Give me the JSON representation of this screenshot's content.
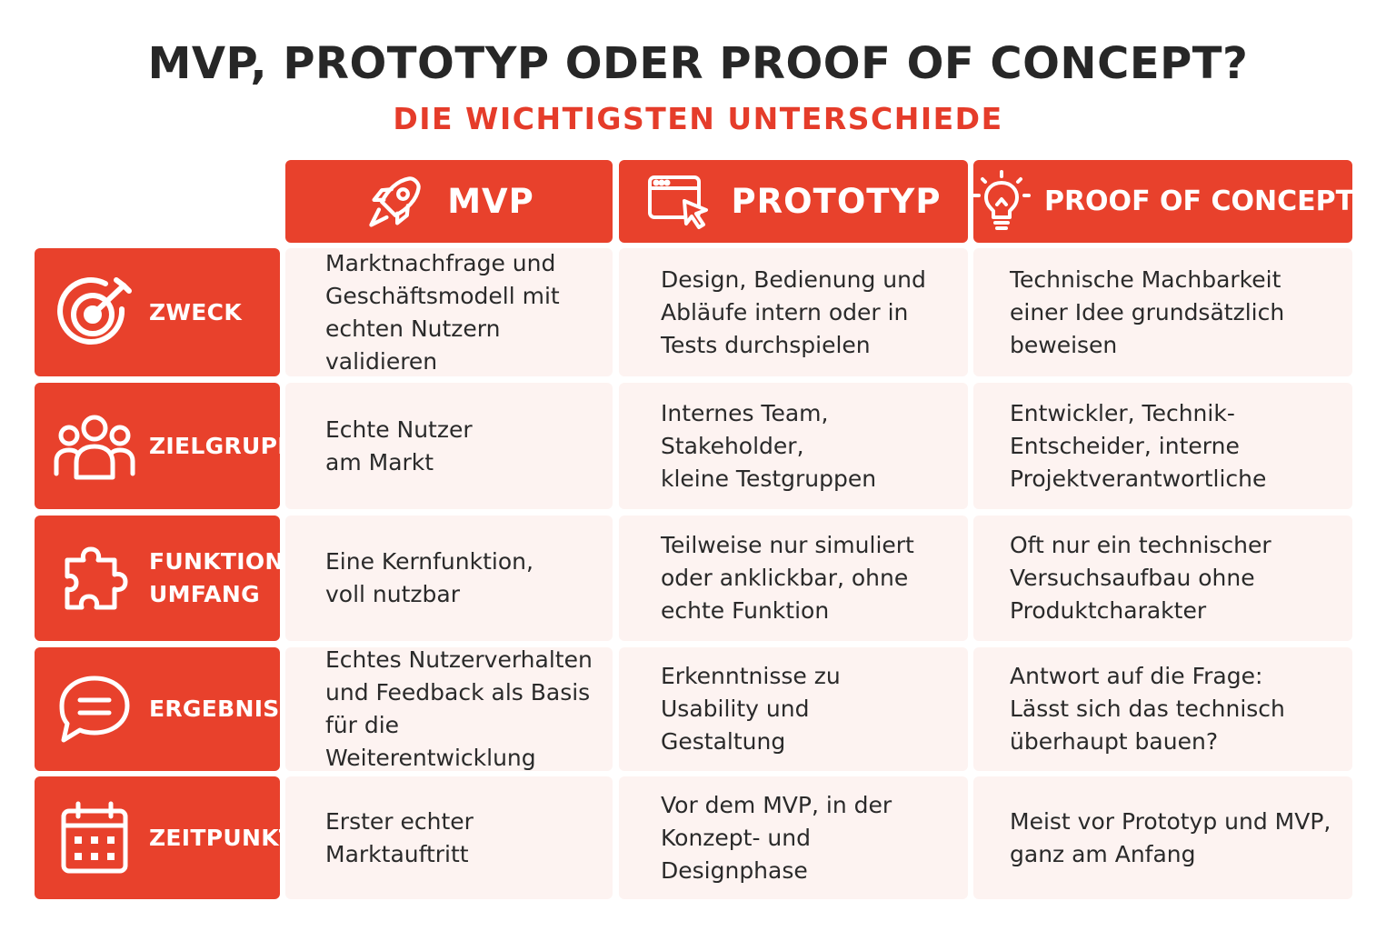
{
  "title": "MVP, PROTOTYP ODER PROOF OF CONCEPT?",
  "subtitle": "DIE WICHTIGSTEN UNTERSCHIEDE",
  "colors": {
    "accent": "#e8412c",
    "cell_background": "#fdf3f1",
    "title_text": "#272727",
    "subtitle_text": "#e53c2a"
  },
  "columns": [
    {
      "label": "MVP",
      "icon": "rocket-icon"
    },
    {
      "label": "PROTOTYP",
      "icon": "browser-cursor-icon"
    },
    {
      "label": "PROOF OF CONCEPT",
      "icon": "lightbulb-icon"
    }
  ],
  "rows": [
    {
      "label": "ZWECK",
      "icon": "target-icon",
      "cells": [
        "Marktnachfrage und\nGeschäftsmodell mit\nechten Nutzern validieren",
        "Design, Bedienung und\nAbläufe intern oder in\nTests durchspielen",
        "Technische Machbarkeit\neiner Idee grundsätzlich\nbeweisen"
      ]
    },
    {
      "label": "ZIELGRUPPE",
      "icon": "users-icon",
      "cells": [
        "Echte Nutzer\nam Markt",
        "Internes Team, Stakeholder,\nkleine Testgruppen",
        "Entwickler, Technik-\nEntscheider, interne\nProjektverantwortliche"
      ]
    },
    {
      "label": "FUNKTIONS-\nUMFANG",
      "icon": "puzzle-icon",
      "cells": [
        "Eine Kernfunktion,\nvoll nutzbar",
        "Teilweise nur simuliert\noder anklickbar, ohne\nechte Funktion",
        "Oft nur ein technischer\nVersuchsaufbau ohne\nProduktcharakter"
      ]
    },
    {
      "label": "ERGEBNIS",
      "icon": "chat-bubble-icon",
      "cells": [
        "Echtes Nutzerverhalten\nund Feedback als Basis\nfür die Weiterentwicklung",
        "Erkenntnisse zu\nUsability und\nGestaltung",
        "Antwort auf die Frage:\nLässt sich das technisch\nüberhaupt bauen?"
      ]
    },
    {
      "label": "ZEITPUNKT",
      "icon": "calendar-icon",
      "cells": [
        "Erster echter\nMarktauftritt",
        "Vor dem MVP, in der\nKonzept- und\nDesignphase",
        "Meist vor Prototyp und MVP,\nganz am Anfang"
      ]
    }
  ]
}
